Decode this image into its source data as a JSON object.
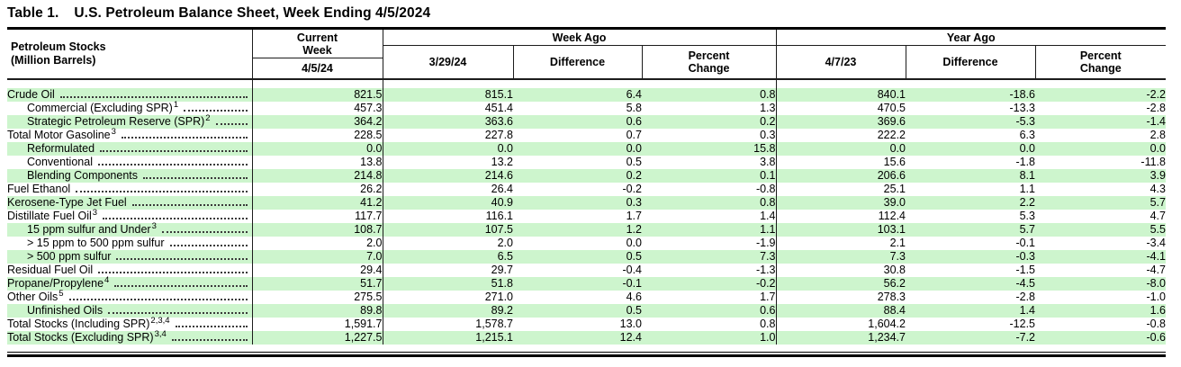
{
  "title": {
    "prefix": "Table 1.",
    "text": "U.S. Petroleum Balance Sheet, Week Ending 4/5/2024"
  },
  "colors": {
    "row_stripe_green": "#cdf5cd",
    "rule_black": "#000000"
  },
  "table": {
    "header": {
      "stub": "Petroleum Stocks\n(Million Barrels)",
      "current_week": "Current\nWeek",
      "current_date": "4/5/24",
      "week_ago": {
        "title": "Week Ago",
        "date": "3/29/24",
        "difference": "Difference",
        "percent_change": "Percent\nChange"
      },
      "year_ago": {
        "title": "Year Ago",
        "date": "4/7/23",
        "difference": "Difference",
        "percent_change": "Percent\nChange"
      }
    },
    "column_names": [
      "current-week",
      "week-ago-stocks",
      "week-ago-difference",
      "week-ago-percent-change",
      "year-ago-stocks",
      "year-ago-difference",
      "year-ago-percent-change"
    ],
    "rows": [
      {
        "label": "Crude Oil",
        "sup": "",
        "indent": 0,
        "values": [
          "821.5",
          "815.1",
          "6.4",
          "0.8",
          "840.1",
          "-18.6",
          "-2.2"
        ]
      },
      {
        "label": "Commercial (Excluding SPR)",
        "sup": "1",
        "indent": 1,
        "values": [
          "457.3",
          "451.4",
          "5.8",
          "1.3",
          "470.5",
          "-13.3",
          "-2.8"
        ]
      },
      {
        "label": "Strategic Petroleum Reserve (SPR)",
        "sup": "2",
        "indent": 1,
        "values": [
          "364.2",
          "363.6",
          "0.6",
          "0.2",
          "369.6",
          "-5.3",
          "-1.4"
        ]
      },
      {
        "label": "Total Motor Gasoline",
        "sup": "3",
        "indent": 0,
        "values": [
          "228.5",
          "227.8",
          "0.7",
          "0.3",
          "222.2",
          "6.3",
          "2.8"
        ]
      },
      {
        "label": "Reformulated",
        "sup": "",
        "indent": 1,
        "values": [
          "0.0",
          "0.0",
          "0.0",
          "15.8",
          "0.0",
          "0.0",
          "0.0"
        ]
      },
      {
        "label": "Conventional",
        "sup": "",
        "indent": 1,
        "values": [
          "13.8",
          "13.2",
          "0.5",
          "3.8",
          "15.6",
          "-1.8",
          "-11.8"
        ]
      },
      {
        "label": "Blending Components",
        "sup": "",
        "indent": 1,
        "values": [
          "214.8",
          "214.6",
          "0.2",
          "0.1",
          "206.6",
          "8.1",
          "3.9"
        ]
      },
      {
        "label": "Fuel Ethanol",
        "sup": "",
        "indent": 0,
        "values": [
          "26.2",
          "26.4",
          "-0.2",
          "-0.8",
          "25.1",
          "1.1",
          "4.3"
        ]
      },
      {
        "label": "Kerosene-Type Jet Fuel",
        "sup": "",
        "indent": 0,
        "values": [
          "41.2",
          "40.9",
          "0.3",
          "0.8",
          "39.0",
          "2.2",
          "5.7"
        ]
      },
      {
        "label": "Distillate Fuel Oil",
        "sup": "3",
        "indent": 0,
        "values": [
          "117.7",
          "116.1",
          "1.7",
          "1.4",
          "112.4",
          "5.3",
          "4.7"
        ]
      },
      {
        "label": "15 ppm sulfur and Under",
        "sup": "3",
        "indent": 1,
        "values": [
          "108.7",
          "107.5",
          "1.2",
          "1.1",
          "103.1",
          "5.7",
          "5.5"
        ]
      },
      {
        "label": "> 15 ppm to 500 ppm sulfur",
        "sup": "",
        "indent": 1,
        "values": [
          "2.0",
          "2.0",
          "0.0",
          "-1.9",
          "2.1",
          "-0.1",
          "-3.4"
        ]
      },
      {
        "label": "> 500 ppm sulfur",
        "sup": "",
        "indent": 1,
        "values": [
          "7.0",
          "6.5",
          "0.5",
          "7.3",
          "7.3",
          "-0.3",
          "-4.1"
        ]
      },
      {
        "label": "Residual Fuel Oil",
        "sup": "",
        "indent": 0,
        "values": [
          "29.4",
          "29.7",
          "-0.4",
          "-1.3",
          "30.8",
          "-1.5",
          "-4.7"
        ]
      },
      {
        "label": "Propane/Propylene",
        "sup": "4",
        "indent": 0,
        "values": [
          "51.7",
          "51.8",
          "-0.1",
          "-0.2",
          "56.2",
          "-4.5",
          "-8.0"
        ]
      },
      {
        "label": "Other Oils",
        "sup": "5",
        "indent": 0,
        "values": [
          "275.5",
          "271.0",
          "4.6",
          "1.7",
          "278.3",
          "-2.8",
          "-1.0"
        ]
      },
      {
        "label": "Unfinished Oils",
        "sup": "",
        "indent": 1,
        "values": [
          "89.8",
          "89.2",
          "0.5",
          "0.6",
          "88.4",
          "1.4",
          "1.6"
        ]
      },
      {
        "label": "Total Stocks (Including SPR)",
        "sup": "2,3,4",
        "indent": 0,
        "values": [
          "1,591.7",
          "1,578.7",
          "13.0",
          "0.8",
          "1,604.2",
          "-12.5",
          "-0.8"
        ]
      },
      {
        "label": "Total Stocks (Excluding SPR)",
        "sup": "3,4",
        "indent": 0,
        "values": [
          "1,227.5",
          "1,215.1",
          "12.4",
          "1.0",
          "1,234.7",
          "-7.2",
          "-0.6"
        ]
      }
    ]
  }
}
